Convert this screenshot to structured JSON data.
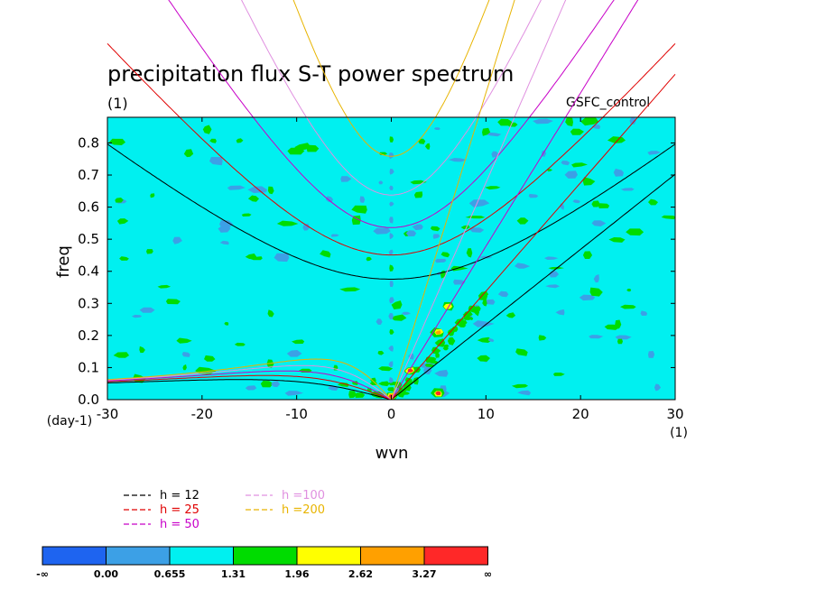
{
  "title": "precipitation flux S-T power spectrum",
  "units_label": "(1)",
  "case_label": "GSFC_control",
  "chart_data": {
    "type": "heatmap",
    "xlabel": "wvn",
    "ylabel": "freq",
    "x_units": "(1)",
    "y_units": "(day-1)",
    "xlim": [
      -30,
      30
    ],
    "ylim": [
      0,
      0.88
    ],
    "x_ticks": [
      -30,
      -20,
      -10,
      0,
      10,
      20,
      30
    ],
    "y_ticks": [
      0.0,
      0.1,
      0.2,
      0.3,
      0.4,
      0.5,
      0.6,
      0.7,
      0.8
    ],
    "x_tick_labels": [
      "-30",
      "-20",
      "-10",
      "0",
      "10",
      "20",
      "30"
    ],
    "y_tick_labels": [
      "0.0",
      "0.1",
      "0.2",
      "0.3",
      "0.4",
      "0.5",
      "0.6",
      "0.7",
      "0.8"
    ],
    "background_level": "0.655-1.31",
    "dispersion_curves": [
      {
        "name": "h = 12",
        "color": "#000000"
      },
      {
        "name": "h = 25",
        "color": "#e00000"
      },
      {
        "name": "h = 50",
        "color": "#c800c8"
      },
      {
        "name": "h =100",
        "color": "#e090e0"
      },
      {
        "name": "h =200",
        "color": "#e8b400"
      }
    ],
    "colorbar": {
      "labels": [
        "-∞",
        "0.00",
        "0.655",
        "1.31",
        "1.96",
        "2.62",
        "3.27",
        "∞"
      ],
      "colors": [
        "#1e64f0",
        "#3ca0e6",
        "#00f0f0",
        "#00dc00",
        "#ffff00",
        "#ffa000",
        "#ff2828"
      ]
    },
    "features": [
      {
        "x": 0,
        "y": 0.01,
        "level": "3.27-∞"
      },
      {
        "x": 2,
        "y": 0.09,
        "level": "3.27-∞"
      },
      {
        "x": 5,
        "y": 0.02,
        "level": "3.27-∞"
      },
      {
        "x": 5,
        "y": 0.21,
        "level": "2.62-3.27"
      },
      {
        "x": 6,
        "y": 0.29,
        "level": "1.96-2.62"
      }
    ]
  }
}
